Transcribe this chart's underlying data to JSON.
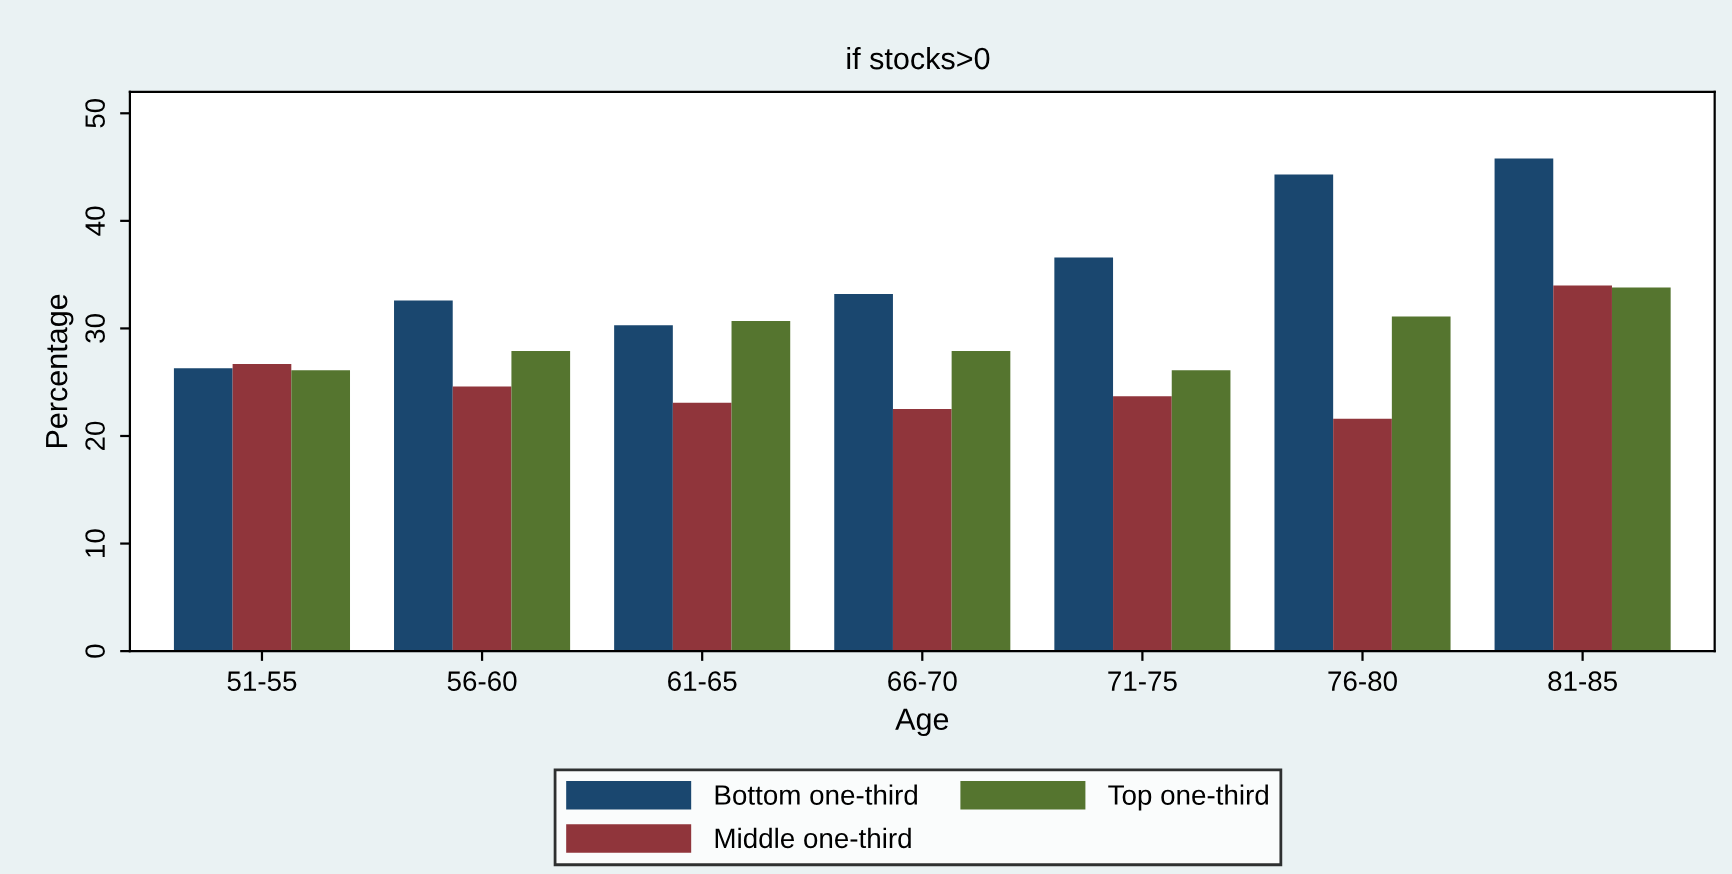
{
  "chart_data": {
    "type": "bar",
    "title": "if stocks>0",
    "xlabel": "Age",
    "ylabel": "Percentage",
    "categories": [
      "51-55",
      "56-60",
      "61-65",
      "66-70",
      "71-75",
      "76-80",
      "81-85"
    ],
    "series": [
      {
        "name": "Bottom one-third",
        "color": "#1a476f",
        "values": [
          26.3,
          32.6,
          30.3,
          33.2,
          36.6,
          44.3,
          45.8
        ]
      },
      {
        "name": "Middle one-third",
        "color": "#90353b",
        "values": [
          26.7,
          24.6,
          23.1,
          22.5,
          23.7,
          21.6,
          34.0
        ]
      },
      {
        "name": "Top one-third",
        "color": "#55752f",
        "values": [
          26.1,
          27.9,
          30.7,
          27.9,
          26.1,
          31.1,
          33.8
        ]
      }
    ],
    "ylim": [
      0,
      52
    ],
    "yticks": [
      0,
      10,
      20,
      30,
      40,
      50
    ],
    "grid": false,
    "legend": "bottom"
  }
}
